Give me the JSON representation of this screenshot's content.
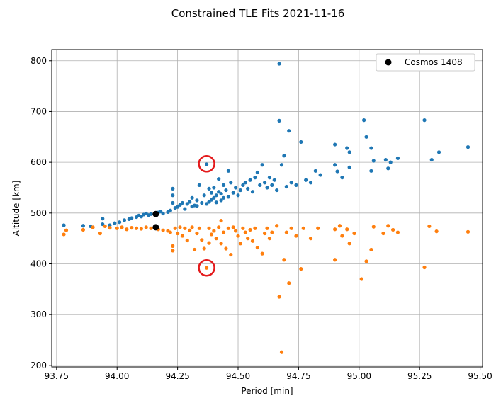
{
  "chart_data": {
    "type": "scatter",
    "title": "Constrained TLE Fits 2021-11-16",
    "xlabel": "Period [min]",
    "ylabel": "Altitude [km]",
    "xlim": [
      93.73,
      95.51
    ],
    "ylim": [
      197,
      822
    ],
    "xticks": [
      93.75,
      94.0,
      94.25,
      94.5,
      94.75,
      95.0,
      95.25,
      95.5
    ],
    "xtick_labels": [
      "93.75",
      "94.00",
      "94.25",
      "94.50",
      "94.75",
      "95.00",
      "95.25",
      "95.50"
    ],
    "yticks": [
      200,
      300,
      400,
      500,
      600,
      700,
      800
    ],
    "ytick_labels": [
      "200",
      "300",
      "400",
      "500",
      "600",
      "700",
      "800"
    ],
    "grid": true,
    "legend_position": "upper right",
    "legend": [
      {
        "label": "Cosmos 1408",
        "color": "#000000"
      }
    ],
    "series": [
      {
        "color": "#1f77b4",
        "points": [
          [
            93.78,
            476
          ],
          [
            93.86,
            475
          ],
          [
            93.89,
            474
          ],
          [
            93.94,
            489
          ],
          [
            93.94,
            478
          ],
          [
            93.97,
            476
          ],
          [
            93.99,
            480
          ],
          [
            94.01,
            482
          ],
          [
            94.03,
            486
          ],
          [
            94.05,
            488
          ],
          [
            94.06,
            490
          ],
          [
            94.08,
            492
          ],
          [
            94.09,
            495
          ],
          [
            94.1,
            493
          ],
          [
            94.11,
            497
          ],
          [
            94.12,
            499
          ],
          [
            94.13,
            496
          ],
          [
            94.14,
            498
          ],
          [
            94.17,
            501
          ],
          [
            94.18,
            503
          ],
          [
            94.19,
            499
          ],
          [
            94.21,
            502
          ],
          [
            94.22,
            505
          ],
          [
            94.23,
            520
          ],
          [
            94.23,
            535
          ],
          [
            94.23,
            548
          ],
          [
            94.24,
            510
          ],
          [
            94.25,
            512
          ],
          [
            94.26,
            516
          ],
          [
            94.27,
            520
          ],
          [
            94.28,
            508
          ],
          [
            94.29,
            518
          ],
          [
            94.3,
            522
          ],
          [
            94.31,
            513
          ],
          [
            94.31,
            530
          ],
          [
            94.32,
            515
          ],
          [
            94.33,
            525
          ],
          [
            94.33,
            514
          ],
          [
            94.34,
            555
          ],
          [
            94.35,
            520
          ],
          [
            94.36,
            535
          ],
          [
            94.37,
            596
          ],
          [
            94.37,
            518
          ],
          [
            94.38,
            548
          ],
          [
            94.38,
            522
          ],
          [
            94.39,
            526
          ],
          [
            94.39,
            540
          ],
          [
            94.4,
            530
          ],
          [
            94.4,
            550
          ],
          [
            94.41,
            521
          ],
          [
            94.41,
            535
          ],
          [
            94.42,
            542
          ],
          [
            94.42,
            567
          ],
          [
            94.43,
            525
          ],
          [
            94.43,
            538
          ],
          [
            94.44,
            555
          ],
          [
            94.44,
            530
          ],
          [
            94.45,
            545
          ],
          [
            94.46,
            583
          ],
          [
            94.46,
            532
          ],
          [
            94.47,
            560
          ],
          [
            94.48,
            540
          ],
          [
            94.49,
            550
          ],
          [
            94.5,
            535
          ],
          [
            94.51,
            545
          ],
          [
            94.52,
            555
          ],
          [
            94.53,
            560
          ],
          [
            94.54,
            548
          ],
          [
            94.55,
            565
          ],
          [
            94.56,
            542
          ],
          [
            94.57,
            570
          ],
          [
            94.58,
            580
          ],
          [
            94.59,
            555
          ],
          [
            94.6,
            595
          ],
          [
            94.61,
            560
          ],
          [
            94.62,
            550
          ],
          [
            94.63,
            570
          ],
          [
            94.64,
            555
          ],
          [
            94.65,
            565
          ],
          [
            94.66,
            545
          ],
          [
            94.67,
            682
          ],
          [
            94.67,
            794
          ],
          [
            94.68,
            595
          ],
          [
            94.69,
            613
          ],
          [
            94.7,
            552
          ],
          [
            94.71,
            662
          ],
          [
            94.72,
            560
          ],
          [
            94.74,
            555
          ],
          [
            94.76,
            640
          ],
          [
            94.78,
            565
          ],
          [
            94.8,
            560
          ],
          [
            94.82,
            583
          ],
          [
            94.84,
            575
          ],
          [
            94.9,
            635
          ],
          [
            94.9,
            595
          ],
          [
            94.91,
            582
          ],
          [
            94.93,
            570
          ],
          [
            94.95,
            628
          ],
          [
            94.96,
            620
          ],
          [
            94.96,
            590
          ],
          [
            95.02,
            683
          ],
          [
            95.03,
            650
          ],
          [
            95.05,
            628
          ],
          [
            95.05,
            583
          ],
          [
            95.06,
            603
          ],
          [
            95.11,
            605
          ],
          [
            95.12,
            588
          ],
          [
            95.13,
            600
          ],
          [
            95.16,
            608
          ],
          [
            95.27,
            683
          ],
          [
            95.3,
            605
          ],
          [
            95.33,
            620
          ],
          [
            95.45,
            630
          ]
        ]
      },
      {
        "color": "#ff7f0e",
        "points": [
          [
            93.78,
            458
          ],
          [
            93.79,
            466
          ],
          [
            93.86,
            467
          ],
          [
            93.9,
            472
          ],
          [
            93.93,
            460
          ],
          [
            93.95,
            474
          ],
          [
            93.97,
            471
          ],
          [
            94.0,
            470
          ],
          [
            94.02,
            472
          ],
          [
            94.04,
            468
          ],
          [
            94.06,
            471
          ],
          [
            94.08,
            470
          ],
          [
            94.1,
            469
          ],
          [
            94.12,
            472
          ],
          [
            94.14,
            470
          ],
          [
            94.17,
            468
          ],
          [
            94.19,
            466
          ],
          [
            94.21,
            465
          ],
          [
            94.22,
            462
          ],
          [
            94.23,
            426
          ],
          [
            94.23,
            435
          ],
          [
            94.24,
            470
          ],
          [
            94.25,
            460
          ],
          [
            94.26,
            472
          ],
          [
            94.27,
            455
          ],
          [
            94.28,
            470
          ],
          [
            94.29,
            446
          ],
          [
            94.3,
            466
          ],
          [
            94.31,
            472
          ],
          [
            94.32,
            428
          ],
          [
            94.33,
            460
          ],
          [
            94.34,
            470
          ],
          [
            94.35,
            447
          ],
          [
            94.36,
            430
          ],
          [
            94.37,
            392
          ],
          [
            94.38,
            441
          ],
          [
            94.38,
            470
          ],
          [
            94.39,
            458
          ],
          [
            94.4,
            465
          ],
          [
            94.41,
            450
          ],
          [
            94.42,
            472
          ],
          [
            94.43,
            485
          ],
          [
            94.43,
            440
          ],
          [
            94.44,
            462
          ],
          [
            94.45,
            430
          ],
          [
            94.46,
            470
          ],
          [
            94.47,
            418
          ],
          [
            94.48,
            472
          ],
          [
            94.49,
            465
          ],
          [
            94.5,
            455
          ],
          [
            94.51,
            440
          ],
          [
            94.52,
            470
          ],
          [
            94.53,
            462
          ],
          [
            94.54,
            450
          ],
          [
            94.55,
            467
          ],
          [
            94.56,
            445
          ],
          [
            94.57,
            470
          ],
          [
            94.58,
            432
          ],
          [
            94.6,
            420
          ],
          [
            94.61,
            460
          ],
          [
            94.62,
            470
          ],
          [
            94.63,
            450
          ],
          [
            94.64,
            462
          ],
          [
            94.66,
            475
          ],
          [
            94.67,
            335
          ],
          [
            94.68,
            226
          ],
          [
            94.69,
            408
          ],
          [
            94.7,
            462
          ],
          [
            94.71,
            362
          ],
          [
            94.72,
            470
          ],
          [
            94.74,
            455
          ],
          [
            94.76,
            390
          ],
          [
            94.77,
            470
          ],
          [
            94.8,
            450
          ],
          [
            94.83,
            470
          ],
          [
            94.9,
            468
          ],
          [
            94.9,
            408
          ],
          [
            94.92,
            475
          ],
          [
            94.93,
            455
          ],
          [
            94.95,
            468
          ],
          [
            94.96,
            440
          ],
          [
            94.98,
            460
          ],
          [
            95.01,
            370
          ],
          [
            95.03,
            405
          ],
          [
            95.05,
            428
          ],
          [
            95.06,
            473
          ],
          [
            95.1,
            460
          ],
          [
            95.12,
            475
          ],
          [
            95.14,
            467
          ],
          [
            95.16,
            462
          ],
          [
            95.27,
            393
          ],
          [
            95.29,
            474
          ],
          [
            95.32,
            464
          ],
          [
            95.45,
            463
          ]
        ]
      },
      {
        "name": "Cosmos 1408",
        "color": "#000000",
        "points": [
          [
            94.16,
            498
          ],
          [
            94.16,
            472
          ]
        ]
      }
    ],
    "annotations": [
      {
        "shape": "circle",
        "color": "#e41a1c",
        "center": [
          94.37,
          597
        ]
      },
      {
        "shape": "circle",
        "color": "#e41a1c",
        "center": [
          94.37,
          392
        ]
      }
    ]
  }
}
